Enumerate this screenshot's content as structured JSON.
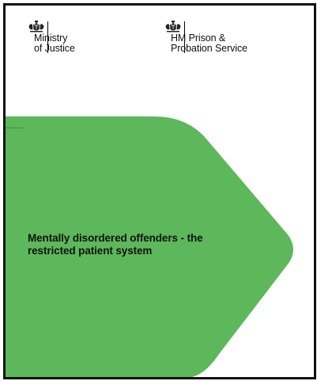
{
  "logos": {
    "moj": {
      "line1": "Ministry",
      "line2": "of Justice",
      "icon": "royal-crest-icon"
    },
    "hmpps": {
      "line1": "HM Prison &",
      "line2": "Probation Service",
      "icon": "royal-crest-icon"
    }
  },
  "document": {
    "title_line1": "Mentally disordered offenders - the",
    "title_line2": "restricted patient system"
  },
  "colors": {
    "panel_green": "#5cb85a",
    "panel_green_dark": "#4fae4c",
    "text": "#111111"
  }
}
